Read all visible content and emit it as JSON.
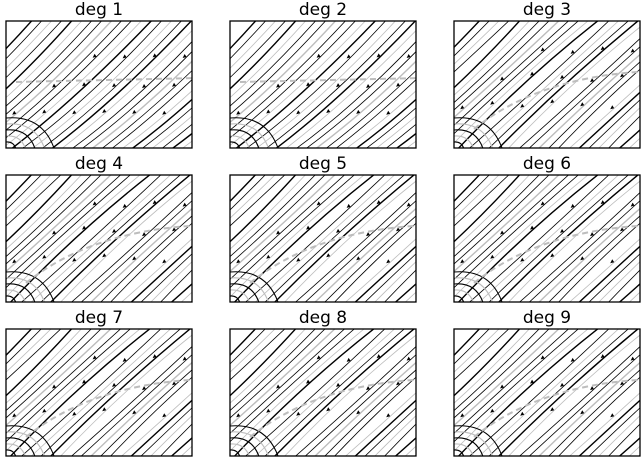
{
  "figure": {
    "background": "#ffffff",
    "stroke_color": "#000000",
    "secondary_stroke_color": "#bdbdbd"
  },
  "chart_data": [
    {
      "type": "streamplot",
      "title": "deg 1",
      "grid": false,
      "axis_ticks": "none"
    },
    {
      "type": "streamplot",
      "title": "deg 2",
      "grid": false,
      "axis_ticks": "none"
    },
    {
      "type": "streamplot",
      "title": "deg 3",
      "grid": false,
      "axis_ticks": "none"
    },
    {
      "type": "streamplot",
      "title": "deg 4",
      "grid": false,
      "axis_ticks": "none"
    },
    {
      "type": "streamplot",
      "title": "deg 5",
      "grid": false,
      "axis_ticks": "none"
    },
    {
      "type": "streamplot",
      "title": "deg 6",
      "grid": false,
      "axis_ticks": "none"
    },
    {
      "type": "streamplot",
      "title": "deg 7",
      "grid": false,
      "axis_ticks": "none"
    },
    {
      "type": "streamplot",
      "title": "deg 8",
      "grid": false,
      "axis_ticks": "none"
    },
    {
      "type": "streamplot",
      "title": "deg 9",
      "grid": false,
      "axis_ticks": "none"
    }
  ]
}
